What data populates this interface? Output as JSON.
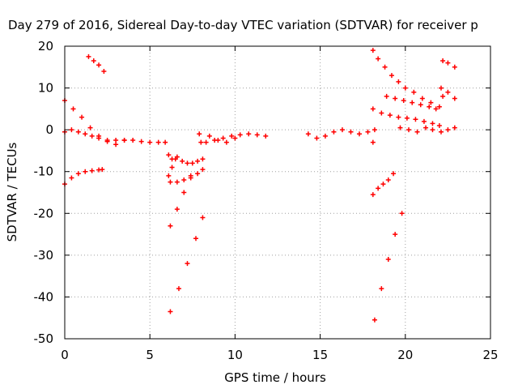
{
  "chart_data": {
    "type": "scatter",
    "title": "Day 279 of 2016, Sidereal Day-to-day VTEC variation (SDTVAR) for receiver p",
    "xlabel": "GPS time / hours",
    "ylabel": "SDTVAR / TECUs",
    "xlim": [
      0,
      25
    ],
    "ylim": [
      -50,
      20
    ],
    "x_ticks": [
      "0",
      "5",
      "10",
      "15",
      "20",
      "25"
    ],
    "y_ticks": [
      "20",
      "10",
      "0",
      "-10",
      "-20",
      "-30",
      "-40",
      "-50"
    ],
    "grid": true,
    "marker": "+",
    "color": "#ff0000",
    "series": [
      {
        "x": [
          0.0,
          0.4,
          0.8,
          1.2,
          1.6,
          2.0,
          2.5,
          3.0,
          3.5,
          4.0,
          4.5,
          5.0,
          5.5,
          5.9
        ],
        "y": [
          -0.5,
          0.0,
          -0.5,
          -1.0,
          -1.5,
          -2.0,
          -2.5,
          -2.5,
          -2.5,
          -2.5,
          -2.8,
          -3.0,
          -3.0,
          -3.0
        ]
      },
      {
        "x": [
          0.0,
          0.5,
          1.0,
          1.5,
          2.0,
          2.5,
          3.0,
          3.5
        ],
        "y": [
          7.0,
          5.0,
          3.0,
          0.5,
          -1.5,
          -2.8,
          -3.5,
          -2.5
        ]
      },
      {
        "x": [
          0.0,
          0.4,
          0.8,
          1.2,
          1.6,
          2.0,
          2.2
        ],
        "y": [
          -13.0,
          -11.5,
          -10.5,
          -10.0,
          -9.8,
          -9.6,
          -9.5
        ]
      },
      {
        "x": [
          1.4,
          1.7,
          2.0,
          2.3
        ],
        "y": [
          17.5,
          16.5,
          15.5,
          14.0
        ]
      },
      {
        "x": [
          6.1,
          6.3,
          6.6,
          6.9,
          7.2,
          7.5,
          7.8,
          8.1
        ],
        "y": [
          -6.0,
          -7.0,
          -6.5,
          -7.5,
          -8.0,
          -8.0,
          -7.5,
          -7.0
        ]
      },
      {
        "x": [
          6.1,
          6.3,
          6.5
        ],
        "y": [
          -11.0,
          -9.0,
          -7.0
        ]
      },
      {
        "x": [
          6.2,
          6.6,
          7.0,
          7.4,
          7.8,
          8.1
        ],
        "y": [
          -12.5,
          -12.5,
          -12.0,
          -11.5,
          -10.5,
          -9.5
        ]
      },
      {
        "x": [
          6.2,
          6.6,
          7.0,
          7.4
        ],
        "y": [
          -23.0,
          -19.0,
          -15.0,
          -11.0
        ]
      },
      {
        "x": [
          6.2,
          6.7,
          7.2,
          7.7,
          8.1
        ],
        "y": [
          -43.5,
          -38.0,
          -32.0,
          -26.0,
          -21.0
        ]
      },
      {
        "x": [
          7.9,
          8.0
        ],
        "y": [
          -1.0,
          -3.0
        ]
      },
      {
        "x": [
          8.3,
          8.8,
          9.3,
          9.8,
          10.3,
          10.8,
          11.3,
          11.8
        ],
        "y": [
          -3.0,
          -2.5,
          -2.0,
          -1.5,
          -1.2,
          -1.0,
          -1.2,
          -1.5
        ]
      },
      {
        "x": [
          8.5,
          9.0,
          9.5,
          10.0
        ],
        "y": [
          -1.5,
          -2.5,
          -3.0,
          -2.0
        ]
      },
      {
        "x": [
          14.3,
          14.8,
          15.3,
          15.8,
          16.3,
          16.8,
          17.3,
          17.8,
          18.2
        ],
        "y": [
          -1.0,
          -2.0,
          -1.5,
          -0.5,
          0.0,
          -0.5,
          -1.0,
          -0.5,
          0.0
        ]
      },
      {
        "x": [
          18.1,
          18.4,
          18.8,
          19.2,
          19.6,
          20.0,
          20.5,
          21.0,
          21.5,
          22.0
        ],
        "y": [
          19.0,
          17.0,
          15.0,
          13.0,
          11.5,
          10.0,
          9.0,
          7.5,
          6.5,
          5.5
        ]
      },
      {
        "x": [
          18.9,
          19.4,
          19.9,
          20.4,
          20.9,
          21.4,
          21.8
        ],
        "y": [
          8.0,
          7.5,
          7.0,
          6.5,
          6.0,
          5.5,
          5.0
        ]
      },
      {
        "x": [
          18.1,
          18.6,
          19.1,
          19.6,
          20.1,
          20.6,
          21.1,
          21.6,
          22.0
        ],
        "y": [
          5.0,
          4.0,
          3.5,
          3.0,
          2.8,
          2.5,
          2.0,
          1.5,
          1.0
        ]
      },
      {
        "x": [
          19.7,
          20.2,
          20.7,
          21.2,
          21.6
        ],
        "y": [
          0.5,
          0.0,
          -0.5,
          0.5,
          0.0
        ]
      },
      {
        "x": [
          18.1,
          18.4,
          18.7,
          19.0,
          19.3
        ],
        "y": [
          -15.5,
          -14.0,
          -13.0,
          -12.0,
          -10.5
        ]
      },
      {
        "x": [
          18.2,
          18.6,
          19.0,
          19.4,
          19.8
        ],
        "y": [
          -45.5,
          -38.0,
          -31.0,
          -25.0,
          -20.0
        ]
      },
      {
        "x": [
          18.1
        ],
        "y": [
          -3.0
        ]
      },
      {
        "x": [
          22.2,
          22.5,
          22.9
        ],
        "y": [
          16.5,
          16.0,
          15.0
        ]
      },
      {
        "x": [
          22.1,
          22.5,
          22.9
        ],
        "y": [
          10.0,
          9.0,
          7.5
        ]
      },
      {
        "x": [
          22.1,
          22.5,
          22.9
        ],
        "y": [
          -0.5,
          0.0,
          0.5
        ]
      },
      {
        "x": [
          22.2
        ],
        "y": [
          8.0
        ]
      }
    ]
  }
}
